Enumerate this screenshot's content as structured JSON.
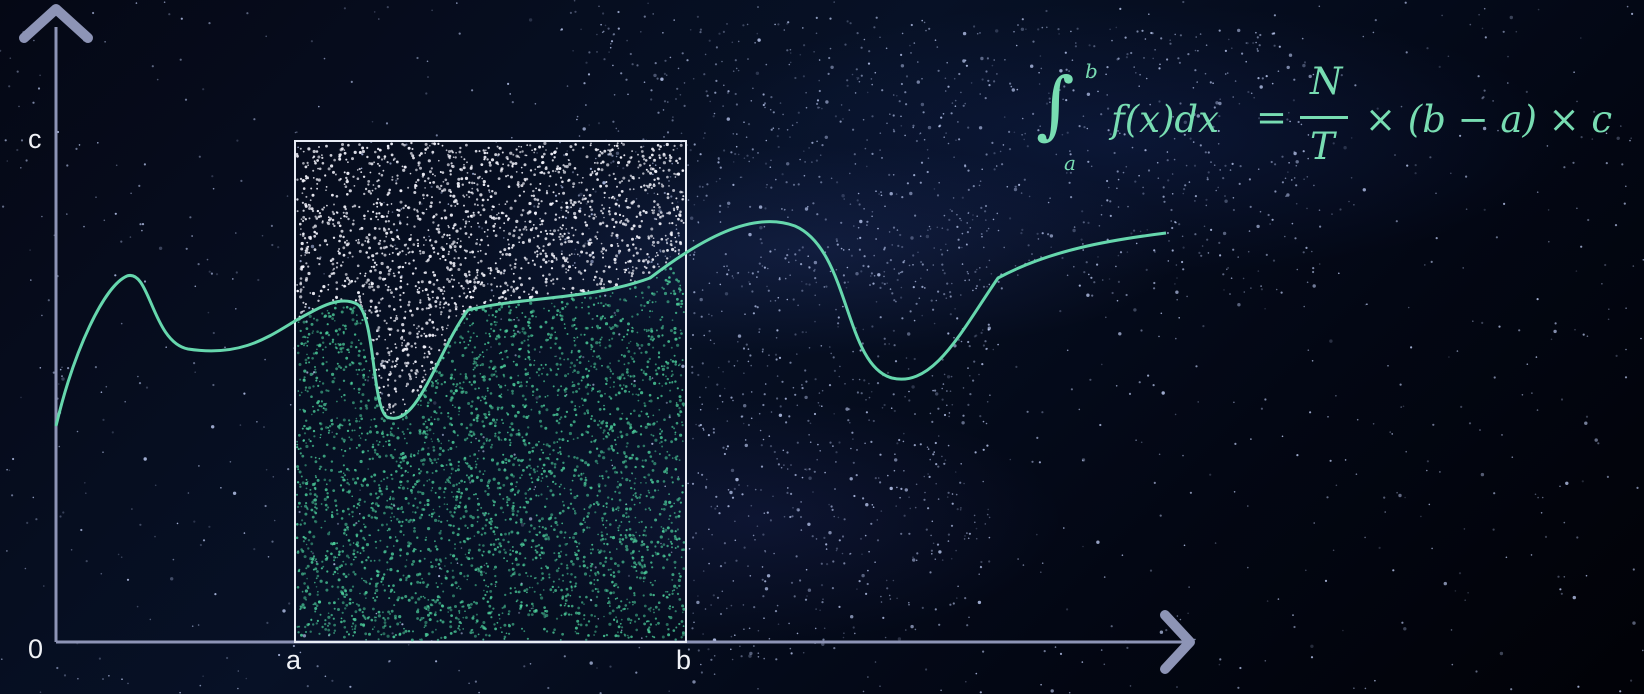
{
  "diagram": {
    "axis": {
      "y_top_label": "c",
      "origin_label": "0",
      "x_label_a": "a",
      "x_label_b": "b"
    },
    "formula": {
      "integral_symbol": "∫",
      "upper_limit": "b",
      "lower_limit": "a",
      "lhs": "f(x)dx",
      "equals": "=",
      "numerator": "N",
      "denominator": "T",
      "rhs": "× (b − a) × c"
    },
    "colors": {
      "axis": "#8d94b6",
      "curve": "#66d7ad",
      "rectangle": "#e8ecf5",
      "points_above": "#f7f7ff",
      "points_below": "#4fd6a0",
      "background_stars": "#c8d6ff"
    }
  }
}
